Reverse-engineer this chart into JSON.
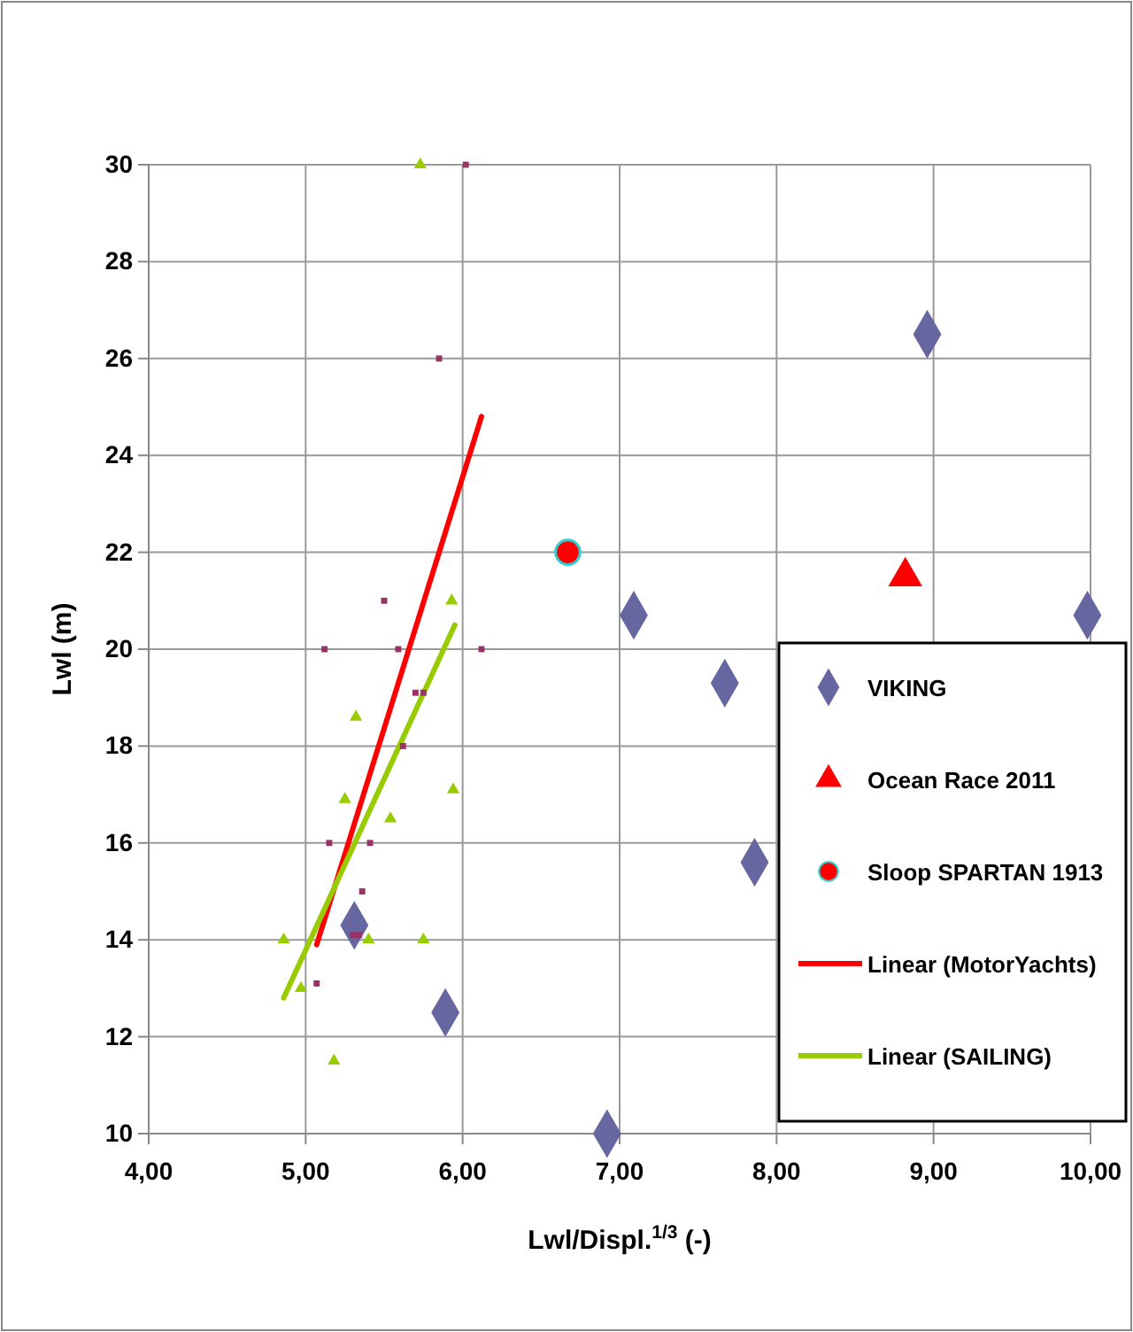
{
  "chart_data": {
    "type": "scatter",
    "xlabel": "Lwl/Displ.$^{1/3}$ (-)",
    "ylabel": "Lwl (m)",
    "xlim": [
      4,
      10
    ],
    "xticks": [
      {
        "value": 4,
        "label": "4,00"
      },
      {
        "value": 5,
        "label": "5,00"
      },
      {
        "value": 6,
        "label": "6,00"
      },
      {
        "value": 7,
        "label": "7,00"
      },
      {
        "value": 8,
        "label": "8,00"
      },
      {
        "value": 9,
        "label": "9,00"
      },
      {
        "value": 10,
        "label": "10,00"
      }
    ],
    "ylim": [
      10,
      30
    ],
    "yticks": [
      10,
      12,
      14,
      16,
      18,
      20,
      22,
      24,
      26,
      28,
      30
    ],
    "grid": true,
    "legend": "right",
    "series": [
      {
        "marker": "square",
        "color": "#993366",
        "x": [
          6.02,
          5.85,
          5.5,
          5.12,
          5.59,
          6.12,
          5.7,
          5.75,
          5.62,
          5.15,
          5.41,
          5.36,
          5.3,
          5.34,
          5.07
        ],
        "values": [
          30,
          26,
          21,
          20,
          20,
          20,
          19.1,
          19.1,
          18,
          16,
          16,
          15,
          14.1,
          14.1,
          13.1
        ]
      },
      {
        "marker": "triangle",
        "color": "#99cc00",
        "x": [
          5.73,
          5.93,
          5.32,
          5.25,
          5.94,
          5.54,
          4.86,
          5.4,
          5.75,
          4.97,
          5.18
        ],
        "values": [
          30,
          21,
          18.6,
          16.9,
          17.1,
          16.5,
          14,
          14,
          14,
          13,
          11.5
        ]
      },
      {
        "marker": "diamond",
        "name": "VIKING",
        "color": "#6666a0",
        "x": [
          8.96,
          7.09,
          9.98,
          7.67,
          7.86,
          6.92,
          5.31,
          5.89
        ],
        "values": [
          26.5,
          20.7,
          20.7,
          19.3,
          15.6,
          10,
          14.3,
          12.5
        ]
      },
      {
        "marker": "triangle",
        "name": "Ocean Race 2011",
        "color": "#ff0000",
        "x": [
          8.82
        ],
        "values": [
          21.5
        ]
      },
      {
        "marker": "circle",
        "name": "Sloop SPARTAN 1913",
        "color": "#ff0000",
        "x": [
          6.67
        ],
        "values": [
          22
        ]
      },
      {
        "type": "line",
        "name": "Linear (MotorYachts)",
        "color": "#ff0000",
        "x": [
          5.07,
          6.12
        ],
        "values": [
          13.9,
          24.8
        ]
      },
      {
        "type": "line",
        "name": "Linear (SAILING)",
        "color": "#99cc00",
        "x": [
          4.86,
          5.95
        ],
        "values": [
          12.8,
          20.5
        ]
      }
    ]
  }
}
